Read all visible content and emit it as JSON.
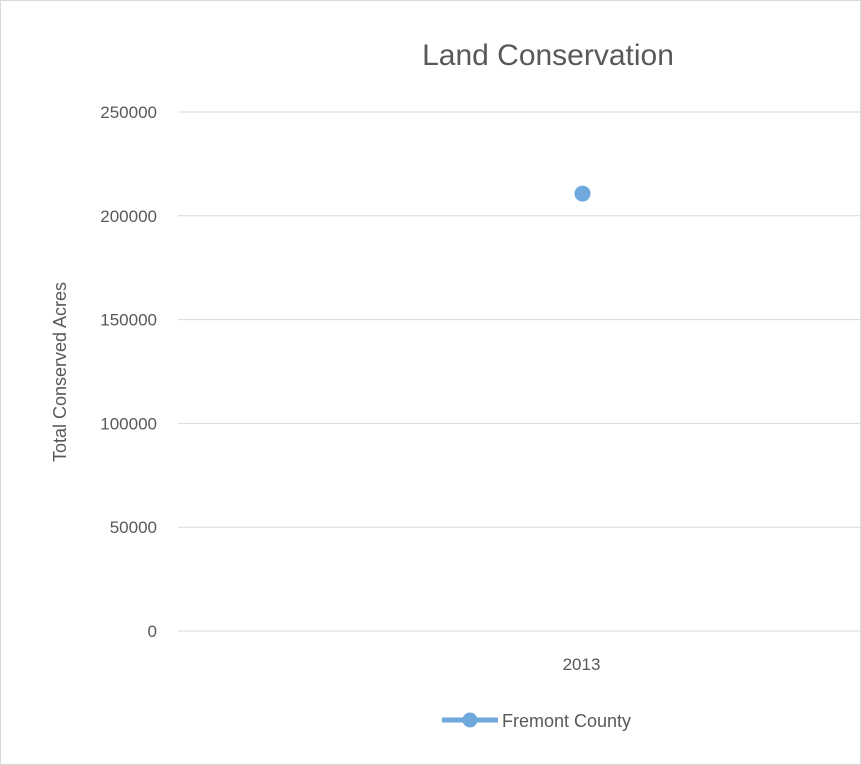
{
  "chart_data": {
    "type": "line",
    "title": "Land Conservation",
    "xlabel": "",
    "ylabel": "Total Conserved Acres",
    "categories": [
      "2013"
    ],
    "series": [
      {
        "name": "Fremont County",
        "values": [
          210700
        ]
      }
    ],
    "ylim": [
      0,
      250000
    ],
    "yticks": [
      0,
      50000,
      100000,
      150000,
      200000,
      250000
    ],
    "grid": true,
    "legend": "bottom",
    "colors": {
      "series": "#6fa8dc",
      "text": "#595959",
      "grid": "#d9d9d9"
    }
  }
}
